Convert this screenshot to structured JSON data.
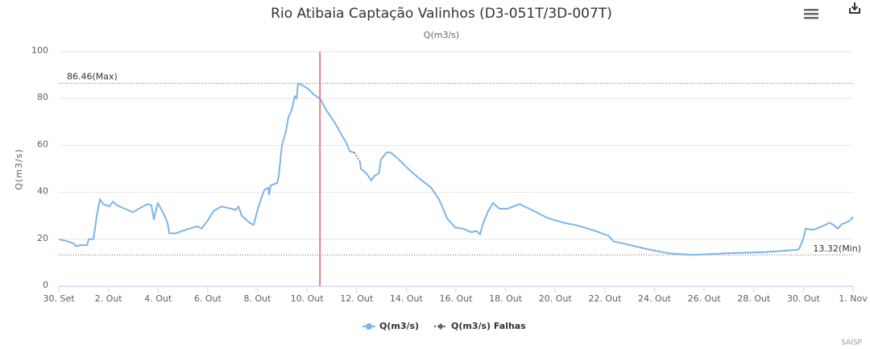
{
  "chart_data": {
    "type": "line",
    "title": "Rio Atibaia Captação Valinhos (D3-051T/3D-007T)",
    "subtitle": "Q(m3/s)",
    "y_label": "Q(m3/s)",
    "credits": "SAISP",
    "xlim": [
      0,
      32
    ],
    "xticks": [
      {
        "value": 0,
        "label": "30. Set"
      },
      {
        "value": 2,
        "label": "2. Out"
      },
      {
        "value": 4,
        "label": "4. Out"
      },
      {
        "value": 6,
        "label": "6. Out"
      },
      {
        "value": 8,
        "label": "8. Out"
      },
      {
        "value": 10,
        "label": "10. Out"
      },
      {
        "value": 12,
        "label": "12. Out"
      },
      {
        "value": 14,
        "label": "14. Out"
      },
      {
        "value": 16,
        "label": "16. Out"
      },
      {
        "value": 18,
        "label": "18. Out"
      },
      {
        "value": 20,
        "label": "20. Out"
      },
      {
        "value": 22,
        "label": "22. Out"
      },
      {
        "value": 24,
        "label": "24. Out"
      },
      {
        "value": 26,
        "label": "26. Out"
      },
      {
        "value": 28,
        "label": "28. Out"
      },
      {
        "value": 30,
        "label": "30. Out"
      },
      {
        "value": 32,
        "label": "1. Nov"
      }
    ],
    "ylim": [
      0,
      100
    ],
    "yticks": [
      0,
      20,
      40,
      60,
      80,
      100
    ],
    "grid": true,
    "plot_lines": [
      {
        "value": 86.46,
        "label": "86.46(Max)"
      },
      {
        "value": 13.32,
        "label": "13.32(Min)"
      }
    ],
    "x_plot_lines": [
      {
        "value": 10.52,
        "color": "#f45b5b"
      }
    ],
    "series": [
      {
        "name": "Q(m3/s)",
        "color": "#7cb5ec",
        "dash": false,
        "x": [
          0,
          0.39,
          0.62,
          0.68,
          0.88,
          1.14,
          1.2,
          1.4,
          1.53,
          1.66,
          1.79,
          2.04,
          2.17,
          2.34,
          2.66,
          2.99,
          3.31,
          3.57,
          3.73,
          3.83,
          3.99,
          4.22,
          4.38,
          4.45,
          4.71,
          5.1,
          5.58,
          5.75,
          6.0,
          6.23,
          6.56,
          6.95,
          7.14,
          7.24,
          7.37,
          7.69,
          7.85,
          8.02,
          8.18,
          8.28,
          8.44,
          8.47,
          8.54,
          8.8,
          8.86,
          8.99,
          9.15,
          9.25,
          9.38,
          9.51,
          9.58,
          9.64,
          9.83,
          10.06,
          10.29,
          10.52,
          10.78,
          11.1,
          11.42,
          11.59,
          11.72,
          11.9,
          12.02,
          12.14,
          12.17,
          12.4,
          12.59,
          12.72,
          12.89,
          12.98,
          13.21,
          13.37,
          13.7,
          14.18,
          14.51,
          15.0,
          15.32,
          15.64,
          15.97,
          16.29,
          16.62,
          16.84,
          16.97,
          17.1,
          17.3,
          17.49,
          17.75,
          18.07,
          18.56,
          19.05,
          19.7,
          20.35,
          20.84,
          21.49,
          22.14,
          22.36,
          22.62,
          23.6,
          24.57,
          25.54,
          26.84,
          28.46,
          29.76,
          29.83,
          29.99,
          30.09,
          30.41,
          30.74,
          31.06,
          31.22,
          31.39,
          31.55,
          31.71,
          31.87,
          32.0
        ],
        "values": [
          20,
          19,
          18,
          17,
          17.5,
          17.5,
          20,
          20,
          30,
          37,
          35,
          34,
          36,
          34.5,
          33,
          31.5,
          33.5,
          35,
          34.5,
          28.5,
          35.5,
          31,
          27,
          22.5,
          22.5,
          24,
          25.5,
          24.5,
          28,
          32,
          34,
          33,
          32.5,
          34,
          30,
          27,
          26,
          33,
          38,
          41,
          42,
          39,
          43,
          44,
          47,
          60,
          66,
          72,
          75,
          81,
          80,
          86.5,
          85.5,
          84,
          81.5,
          80,
          75,
          70,
          64,
          61,
          57.5,
          57,
          null,
          53,
          50,
          48,
          45,
          47,
          48,
          54,
          57,
          57,
          54,
          49,
          46,
          42,
          37,
          29,
          25,
          24.5,
          23,
          23.5,
          22,
          27,
          32,
          35.5,
          33,
          33,
          35,
          32.5,
          29,
          27,
          26,
          24,
          21.5,
          19,
          18.5,
          16,
          14,
          13.3,
          14,
          14.5,
          15.5,
          16,
          20,
          24.5,
          24,
          25.5,
          27,
          26,
          24.5,
          26.5,
          27,
          28,
          29.5
        ]
      },
      {
        "name": "Q(m3/s) Falhas",
        "color": "#666666",
        "dash": true,
        "x": [
          11.9,
          12.02,
          12.14
        ],
        "values": [
          57,
          55,
          53
        ]
      }
    ]
  }
}
